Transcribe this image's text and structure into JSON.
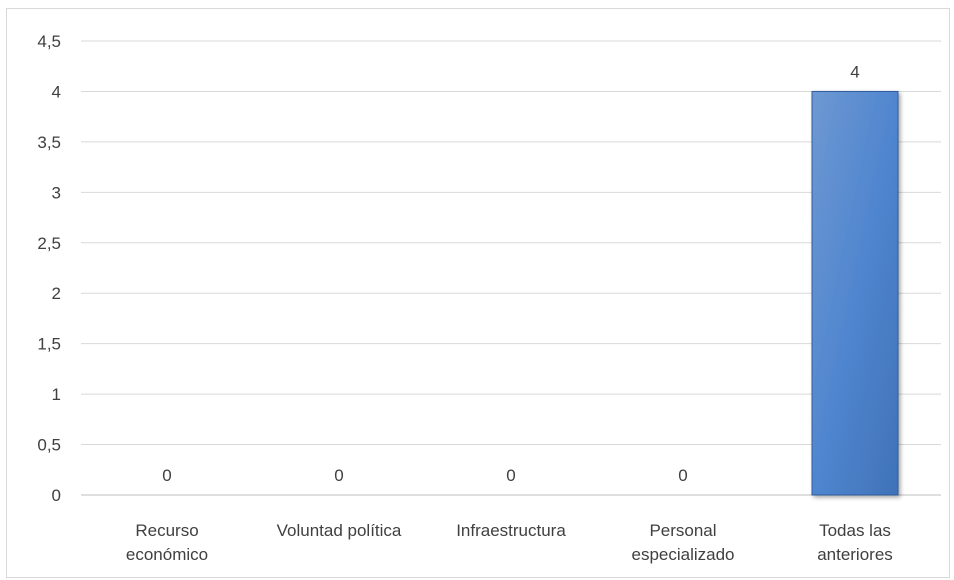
{
  "chart_data": {
    "type": "bar",
    "categories": [
      [
        "Recurso",
        "económico"
      ],
      [
        "Voluntad política"
      ],
      [
        "Infraestructura"
      ],
      [
        "Personal",
        "especializado"
      ],
      [
        "Todas las",
        "anteriores"
      ]
    ],
    "values": [
      0,
      0,
      0,
      0,
      4
    ],
    "data_labels": [
      "0",
      "0",
      "0",
      "0",
      "4"
    ],
    "y_ticks": [
      "0",
      "0,5",
      "1",
      "1,5",
      "2",
      "2,5",
      "3",
      "3,5",
      "4",
      "4,5"
    ],
    "ylim": [
      0,
      4.5
    ],
    "y_step": 0.5,
    "grid": true,
    "legend": "none",
    "colors": {
      "bar_top": "#6e98d2",
      "bar_mid": "#5086cf",
      "bar_bottom": "#3f72b8",
      "bar_edge": "#2f5d9c",
      "grid": "#d9d9d9",
      "axis": "#bfbfbf",
      "text": "#404040"
    }
  }
}
